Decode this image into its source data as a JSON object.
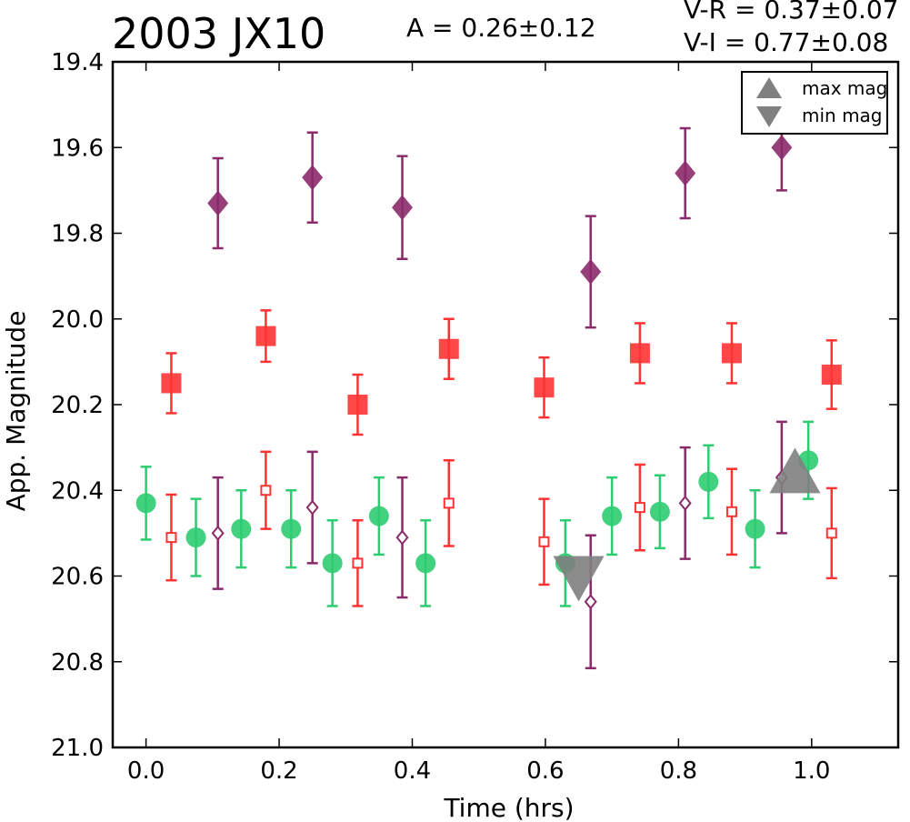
{
  "header": {
    "title": "2003 JX10",
    "amplitude": "A  = 0.26±0.12",
    "color_vr": "V-R = 0.37±0.07",
    "color_vi": "V-I  = 0.77±0.08"
  },
  "chart_data": {
    "type": "scatter",
    "xlabel": "Time (hrs)",
    "ylabel": "App. Magnitude",
    "xlim": [
      -0.05,
      1.13
    ],
    "ylim": [
      21.0,
      19.4
    ],
    "y_inverted": true,
    "xticks": [
      "0.0",
      "0.2",
      "0.4",
      "0.6",
      "0.8",
      "1.0"
    ],
    "xtick_values": [
      0.0,
      0.2,
      0.4,
      0.6,
      0.8,
      1.0
    ],
    "yticks": [
      "19.4",
      "19.6",
      "19.8",
      "20.0",
      "20.2",
      "20.4",
      "20.6",
      "20.8",
      "21.0"
    ],
    "ytick_values": [
      19.4,
      19.6,
      19.8,
      20.0,
      20.2,
      20.4,
      20.6,
      20.8,
      21.0
    ],
    "grid": false,
    "legend": {
      "placement": "top-right",
      "entries": [
        {
          "label": "max mag",
          "marker": "triangle-up",
          "color": "#808080"
        },
        {
          "label": "min mag",
          "marker": "triangle-down",
          "color": "#808080"
        }
      ]
    },
    "series": [
      {
        "marker": "circle",
        "fill": "filled",
        "color": "#2ecc71",
        "x": [
          0.0,
          0.075,
          0.143,
          0.218,
          0.28,
          0.35,
          0.42,
          0.63,
          0.7,
          0.772,
          0.845,
          0.915,
          0.995
        ],
        "y": [
          20.43,
          20.51,
          20.49,
          20.49,
          20.57,
          20.46,
          20.57,
          20.57,
          20.46,
          20.45,
          20.38,
          20.49,
          20.33
        ],
        "err": [
          0.085,
          0.09,
          0.09,
          0.09,
          0.1,
          0.09,
          0.1,
          0.1,
          0.09,
          0.085,
          0.085,
          0.09,
          0.09
        ]
      },
      {
        "marker": "square",
        "fill": "filled",
        "color": "#ff3333",
        "x": [
          0.038,
          0.18,
          0.318,
          0.455,
          0.598,
          0.742,
          0.88,
          1.03
        ],
        "y": [
          20.15,
          20.04,
          20.2,
          20.07,
          20.16,
          20.08,
          20.08,
          20.13
        ],
        "err": [
          0.07,
          0.06,
          0.07,
          0.07,
          0.07,
          0.07,
          0.07,
          0.08
        ]
      },
      {
        "marker": "square",
        "fill": "open",
        "color": "#ff3333",
        "x": [
          0.038,
          0.18,
          0.318,
          0.455,
          0.598,
          0.742,
          0.88,
          1.03
        ],
        "y": [
          20.51,
          20.4,
          20.57,
          20.43,
          20.52,
          20.44,
          20.45,
          20.5
        ],
        "err": [
          0.1,
          0.09,
          0.1,
          0.1,
          0.1,
          0.1,
          0.1,
          0.105
        ]
      },
      {
        "marker": "diamond",
        "fill": "filled",
        "color": "#8b2a6a",
        "x": [
          0.108,
          0.25,
          0.385,
          0.668,
          0.81,
          0.955
        ],
        "y": [
          19.73,
          19.67,
          19.74,
          19.89,
          19.66,
          19.6
        ],
        "err": [
          0.105,
          0.105,
          0.12,
          0.13,
          0.105,
          0.1
        ]
      },
      {
        "marker": "diamond",
        "fill": "open",
        "color": "#8b2a6a",
        "x": [
          0.108,
          0.25,
          0.385,
          0.668,
          0.81,
          0.955
        ],
        "y": [
          20.5,
          20.44,
          20.51,
          20.66,
          20.43,
          20.37
        ],
        "err": [
          0.13,
          0.13,
          0.14,
          0.155,
          0.13,
          0.13
        ]
      }
    ],
    "extrema": [
      {
        "label": "max mag",
        "marker": "triangle-up",
        "color": "#808080",
        "x": 0.975,
        "y": 20.36
      },
      {
        "label": "min mag",
        "marker": "triangle-down",
        "color": "#808080",
        "x": 0.65,
        "y": 20.6
      }
    ]
  }
}
